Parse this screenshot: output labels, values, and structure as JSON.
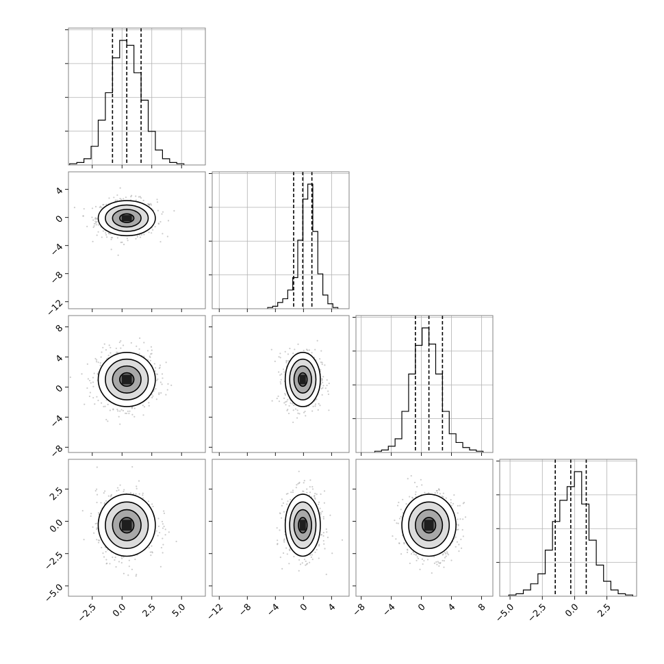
{
  "chart_data": {
    "type": "corner",
    "dimensions": [
      {
        "range": [
          -4.5,
          7.0
        ],
        "ticks": [
          -2.5,
          0.0,
          2.5,
          5.0
        ],
        "labels": [
          "−2.5",
          "0.0",
          "2.5",
          "5.0"
        ],
        "mean": 0.4,
        "sigma": 1.2,
        "quantiles": [
          -0.8,
          0.4,
          1.6
        ]
      },
      {
        "range": [
          -13.0,
          6.5
        ],
        "ticks": [
          -12,
          -8,
          -4,
          0,
          4
        ],
        "labels": [
          "−12",
          "−8",
          "−4",
          "0",
          "4"
        ],
        "mean": -0.1,
        "sigma": 1.25,
        "quantiles": [
          -1.4,
          -0.1,
          1.2
        ]
      },
      {
        "range": [
          -8.7,
          9.5
        ],
        "ticks": [
          -8,
          -4,
          0,
          4,
          8
        ],
        "labels": [
          "−8",
          "−4",
          "0",
          "4",
          "8"
        ],
        "mean": 1.0,
        "sigma": 1.8,
        "quantiles": [
          -0.8,
          1.0,
          2.8
        ]
      },
      {
        "range": [
          -5.8,
          4.8
        ],
        "ticks": [
          -5.0,
          -2.5,
          0.0,
          2.5
        ],
        "labels": [
          "−5.0",
          "−2.5",
          "0.0",
          "2.5"
        ],
        "mean": -0.3,
        "sigma": 1.2,
        "quantiles": [
          -1.5,
          -0.3,
          0.9
        ]
      }
    ],
    "histograms": [
      [
        0.01,
        0.02,
        0.05,
        0.15,
        0.36,
        0.58,
        0.86,
        1.0,
        0.96,
        0.74,
        0.52,
        0.27,
        0.12,
        0.05,
        0.02,
        0.01
      ],
      [
        0.01,
        0.02,
        0.05,
        0.08,
        0.15,
        0.25,
        0.55,
        0.88,
        1.0,
        0.62,
        0.28,
        0.11,
        0.04,
        0.01
      ],
      [
        0.01,
        0.02,
        0.05,
        0.11,
        0.33,
        0.63,
        0.86,
        1.0,
        0.87,
        0.63,
        0.33,
        0.15,
        0.08,
        0.04,
        0.02,
        0.01
      ],
      [
        0.01,
        0.02,
        0.05,
        0.1,
        0.18,
        0.37,
        0.6,
        0.77,
        0.88,
        1.0,
        0.74,
        0.45,
        0.25,
        0.12,
        0.05,
        0.02,
        0.01
      ]
    ],
    "correlations": {
      "1-0": 0.0,
      "2-0": 0.0,
      "2-1": 0.0,
      "3-0": 0.0,
      "3-1": 0.0,
      "3-2": 0.0
    },
    "contour_levels_sigma": [
      0.5,
      1.0,
      1.5,
      2.0
    ],
    "grid": true
  }
}
